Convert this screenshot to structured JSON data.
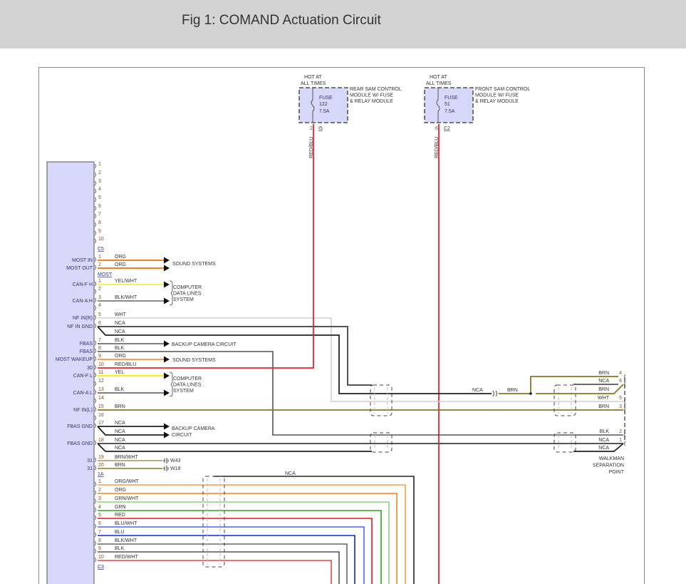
{
  "title": "Fig 1: COMAND Actuation Circuit",
  "fuses": [
    {
      "hot": [
        "HOT AT",
        "ALL TIMES"
      ],
      "fuse": [
        "FUSE",
        "122",
        "7.5A"
      ],
      "module": [
        "REAR SAM CONTROL",
        "MODULE W/ FUSE",
        "& RELAY MODULE"
      ],
      "pin": "2",
      "connector": "I5",
      "wire": "RED/BLU"
    },
    {
      "hot": [
        "HOT AT",
        "ALL TIMES"
      ],
      "fuse": [
        "FUSE",
        "51",
        "7.5A"
      ],
      "module": [
        "FRONT SAM CONTROL",
        "MODULE W/ FUSE",
        "& RELAY MODULE"
      ],
      "pin": "6",
      "connector": "C2",
      "wire": "RED/BLU"
    }
  ],
  "colors": {
    "ORG": "#f5821f",
    "YEL/WHT": "#f2f25a",
    "BLK/WHT": "#666666",
    "WHT": "#d0d0d0",
    "NCA": "#222222",
    "NCA_GRAY": "#555555",
    "BLK": "#555555",
    "RED/BLU": "#ee2233",
    "YEL": "#f5f500",
    "BRN": "#8b7325",
    "BRN/WHT": "#a89060",
    "ORG/WHT": "#f7a04a",
    "GRN/WHT": "#8fd080",
    "GRN": "#30a020",
    "RED": "#ee1111",
    "BLU/WHT": "#5060ff",
    "BLU": "#1020ee",
    "RED/WHT": "#ee4444",
    "module_fill": "#d8d8fa"
  },
  "groups": [
    {
      "connector": "C5",
      "rows": [
        {
          "pin": "1"
        },
        {
          "pin": "2"
        },
        {
          "pin": "3"
        },
        {
          "pin": "4"
        },
        {
          "pin": "5"
        },
        {
          "pin": "6"
        },
        {
          "pin": "7"
        },
        {
          "pin": "8"
        },
        {
          "pin": "9"
        },
        {
          "pin": "10"
        }
      ]
    },
    {
      "connector": "MOST",
      "rows": [
        {
          "pin": "1",
          "signal": "MOST IN",
          "wire": "ORG"
        },
        {
          "pin": "2",
          "signal": "MOST OUT",
          "wire": "ORG"
        }
      ]
    },
    {
      "connector": "1A",
      "rows": [
        {
          "pin": "1",
          "signal": "CAN-F H",
          "wire": "YEL/WHT"
        },
        {
          "pin": "2"
        },
        {
          "pin": "3",
          "signal": "CAN-A H",
          "wire": "BLK/WHT"
        },
        {
          "pin": "4"
        },
        {
          "pin": "5",
          "signal": "NF IN(R)",
          "wire": "WHT"
        },
        {
          "pin": "6",
          "signal": "NF IN GND",
          "wire": "NCA"
        },
        {
          "pin": "",
          "wire": "NCA"
        },
        {
          "pin": "7",
          "signal": "FBAS",
          "wire": "BLK"
        },
        {
          "pin": "8",
          "signal": "FBAS",
          "wire": "BLK"
        },
        {
          "pin": "9",
          "signal": "MOST WAKEUP",
          "wire": "ORG"
        },
        {
          "pin": "10",
          "signal": "30",
          "wire": "RED/BLU"
        },
        {
          "pin": "11",
          "signal": "CAN-F L",
          "wire": "YEL"
        },
        {
          "pin": "12"
        },
        {
          "pin": "13",
          "signal": "CAN-A L",
          "wire": "BLK"
        },
        {
          "pin": "14"
        },
        {
          "pin": "15",
          "signal": "NF IN(L)",
          "wire": "BRN"
        },
        {
          "pin": "16"
        },
        {
          "pin": "17",
          "signal": "FBAS GND",
          "wire": "NCA"
        },
        {
          "pin": "",
          "wire": "NCA"
        },
        {
          "pin": "18",
          "signal": "FBAS GND",
          "wire": "NCA"
        },
        {
          "pin": "",
          "wire": "NCA"
        },
        {
          "pin": "19",
          "signal": "31",
          "wire": "BRN/WHT"
        },
        {
          "pin": "20",
          "signal": "31",
          "wire": "BRN"
        }
      ]
    },
    {
      "connector": "C3",
      "rows": [
        {
          "pin": "1",
          "wire": "ORG/WHT"
        },
        {
          "pin": "2",
          "wire": "ORG"
        },
        {
          "pin": "3",
          "wire": "GRN/WHT"
        },
        {
          "pin": "4",
          "wire": "GRN"
        },
        {
          "pin": "5",
          "wire": "RED"
        },
        {
          "pin": "6",
          "wire": "BLU/WHT"
        },
        {
          "pin": "7",
          "wire": "BLU"
        },
        {
          "pin": "8",
          "wire": "BLK/WHT"
        },
        {
          "pin": "9",
          "wire": "BLK"
        },
        {
          "pin": "10",
          "wire": "RED/WHT"
        }
      ]
    }
  ],
  "destinations": {
    "sound_1": "SOUND SYSTEMS",
    "data_1": [
      "COMPUTER",
      "DATA LINES",
      "SYSTEM"
    ],
    "camera_1": "BACKUP CAMERA CIRCUIT",
    "sound_2": "SOUND SYSTEMS",
    "data_2": [
      "COMPUTER",
      "DATA LINES",
      "SYSTEM"
    ],
    "camera_2": [
      "BACKUP CAMERA",
      "CIRCUIT"
    ],
    "ground_19": "W43",
    "ground_20": "W18"
  },
  "splice": {
    "left_wire": "NCA",
    "right_wire": "BRN"
  },
  "bottom_wire": "NCA",
  "separation": {
    "rows": [
      {
        "pin": "4",
        "wire": "BRN"
      },
      {
        "pin": "6",
        "wire": "NCA"
      },
      {
        "pin": "",
        "wire": "BRN"
      },
      {
        "pin": "5",
        "wire": "WHT"
      },
      {
        "pin": "3",
        "wire": "BRN"
      },
      {
        "pin": "2",
        "wire": "BLK"
      },
      {
        "pin": "1",
        "wire": "NCA"
      },
      {
        "pin": "",
        "wire": "NCA"
      }
    ],
    "label": [
      "WALKMAN",
      "SEPARATION",
      "POINT"
    ]
  }
}
